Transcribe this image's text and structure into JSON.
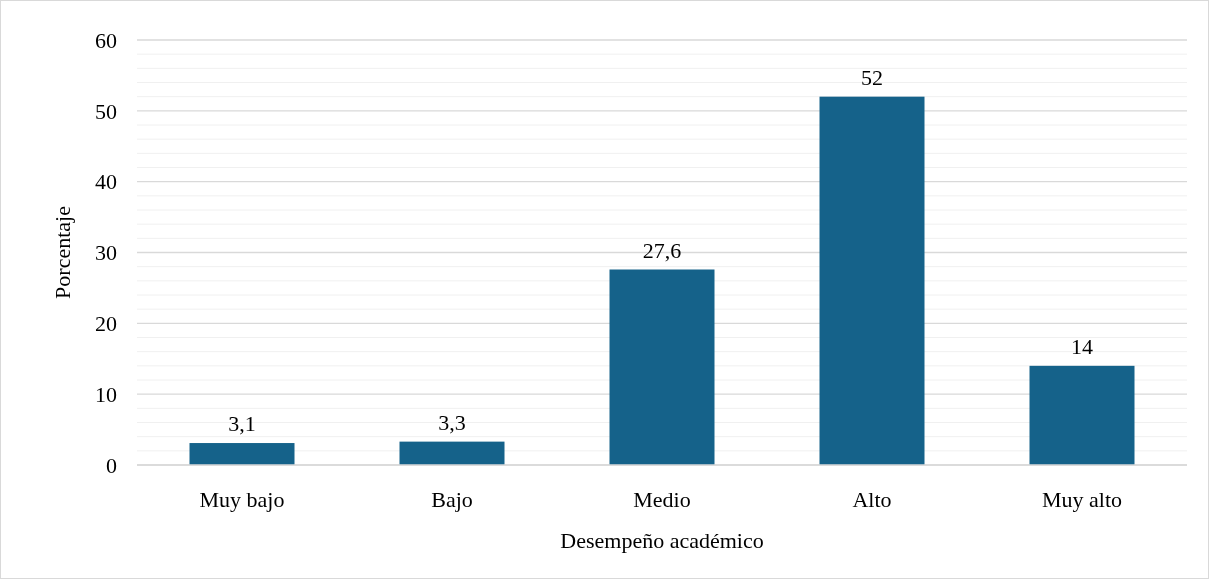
{
  "chart_data": {
    "type": "bar",
    "xlabel": "Desempeño académico",
    "ylabel": "Porcentaje",
    "categories": [
      "Muy bajo",
      "Bajo",
      "Medio",
      "Alto",
      "Muy alto"
    ],
    "values": [
      3.1,
      3.3,
      27.6,
      52,
      14
    ],
    "value_labels": [
      "3,1",
      "3,3",
      "27,6",
      "52",
      "14"
    ],
    "color": "#15628a",
    "ylim": [
      0,
      60
    ],
    "yticks": [
      0,
      {
        "value": 2,
        "label": null
      },
      {
        "value": 4,
        "label": null
      },
      {
        "value": 6,
        "label": null
      },
      {
        "value": 8,
        "label": null
      },
      10,
      {
        "value": 12,
        "label": null
      },
      {
        "value": 14,
        "label": null
      },
      {
        "value": 16,
        "label": null
      },
      {
        "value": 18,
        "label": null
      },
      20,
      {
        "value": 22,
        "label": null
      },
      {
        "value": 24,
        "label": null
      },
      {
        "value": 26,
        "label": null
      },
      {
        "value": 28,
        "label": null
      },
      30,
      {
        "value": 32,
        "label": null
      },
      {
        "value": 34,
        "label": null
      },
      {
        "value": 36,
        "label": null
      },
      {
        "value": 38,
        "label": null
      },
      40,
      {
        "value": 42,
        "label": null
      },
      {
        "value": 44,
        "label": null
      },
      {
        "value": 46,
        "label": null
      },
      {
        "value": 48,
        "label": null
      },
      50,
      {
        "value": 52,
        "label": null
      },
      {
        "value": 54,
        "label": null
      },
      {
        "value": 56,
        "label": null
      },
      {
        "value": 58,
        "label": null
      },
      60
    ],
    "grid": true
  }
}
